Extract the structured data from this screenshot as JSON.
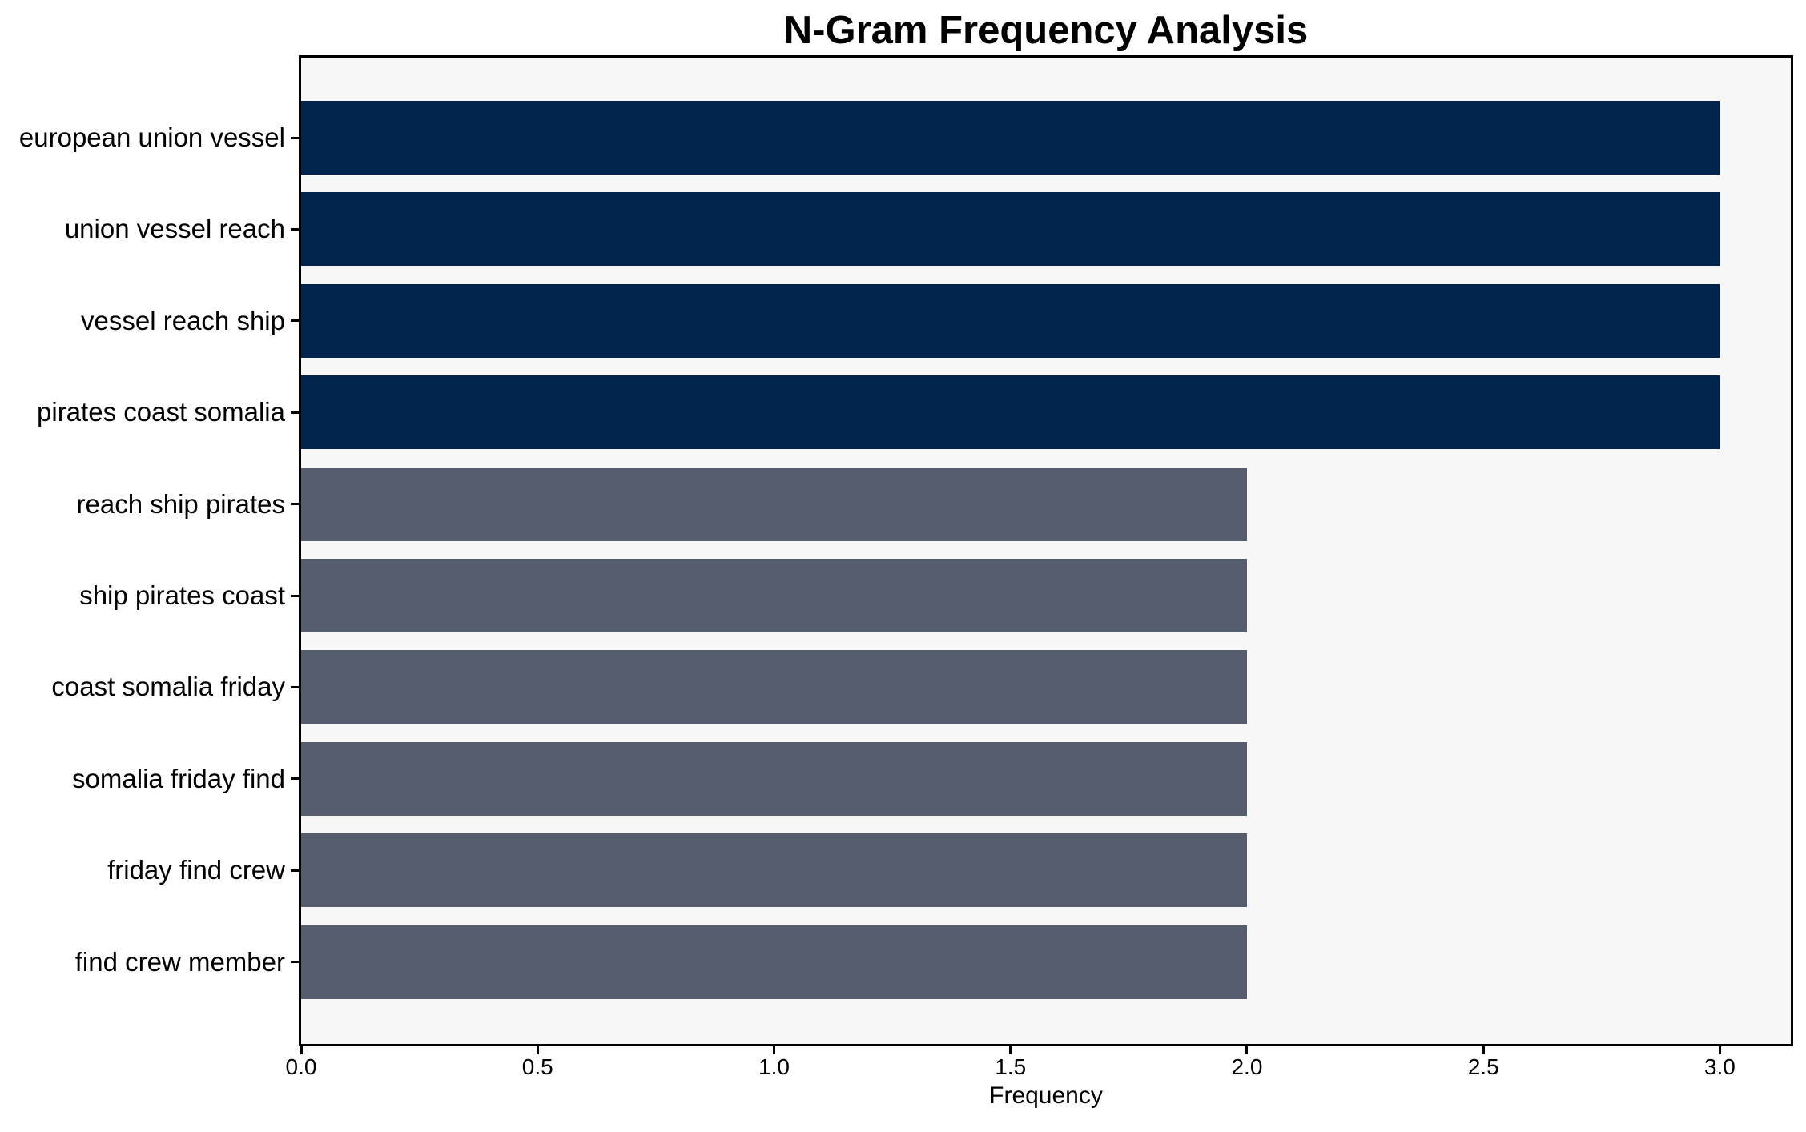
{
  "chart_data": {
    "type": "bar",
    "orientation": "horizontal",
    "title": "N-Gram Frequency Analysis",
    "xlabel": "Frequency",
    "ylabel": "",
    "categories": [
      "european union vessel",
      "union vessel reach",
      "vessel reach ship",
      "pirates coast somalia",
      "reach ship pirates",
      "ship pirates coast",
      "coast somalia friday",
      "somalia friday find",
      "friday find crew",
      "find crew member"
    ],
    "values": [
      3,
      3,
      3,
      3,
      2,
      2,
      2,
      2,
      2,
      2
    ],
    "bar_colors": [
      "#02234B",
      "#02234B",
      "#02234B",
      "#02234B",
      "#565D6D",
      "#565D6D",
      "#565D6D",
      "#565D6D",
      "#565D6D",
      "#565D6D"
    ],
    "xlim": [
      0,
      3.15
    ],
    "x_tick_values": [
      0,
      0.5,
      1,
      1.5,
      2,
      2.5,
      3
    ],
    "x_tick_labels": [
      "0.0",
      "0.5",
      "1.0",
      "1.5",
      "2.0",
      "2.5",
      "3.0"
    ],
    "grid": false,
    "legend": null,
    "colors": {
      "high_freq_bar": "#02234B",
      "low_freq_bar": "#565D6D",
      "plot_background": "#F7F7F7",
      "figure_background": "#FFFFFF",
      "spine": "#000000",
      "text": "#000000"
    }
  }
}
